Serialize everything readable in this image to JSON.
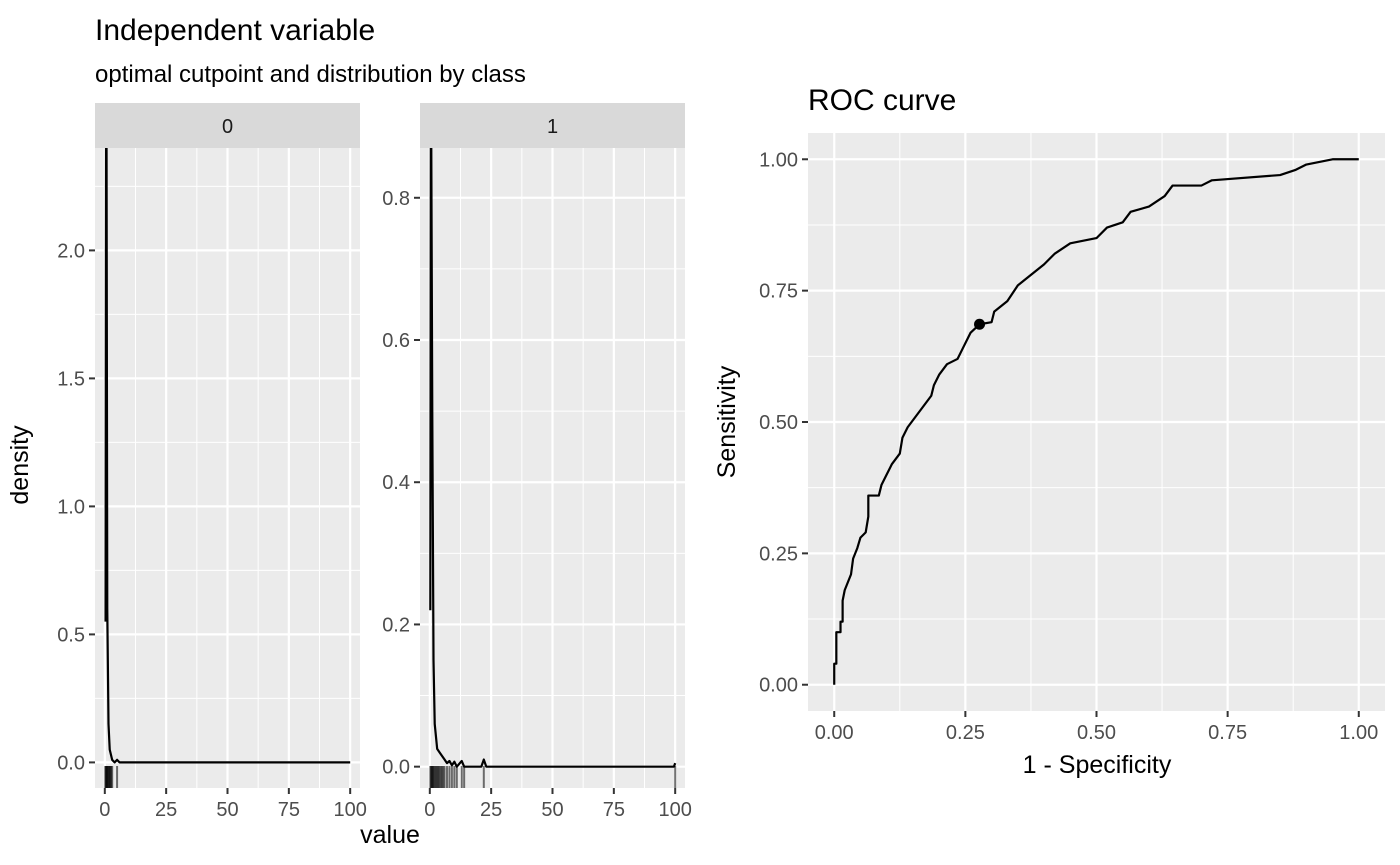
{
  "colors": {
    "panel_bg": "#EBEBEB",
    "grid_major": "#FFFFFF",
    "strip_bg": "#D9D9D9",
    "line": "#000000",
    "tick": "#333333"
  },
  "chart_data": [
    {
      "type": "density",
      "title": "Independent variable",
      "subtitle": "optimal cutpoint and distribution by class",
      "xlabel": "value",
      "ylabel": "density",
      "facets": [
        {
          "label": "0",
          "xlim": [
            -4,
            104
          ],
          "ylim": [
            -0.1,
            2.4
          ],
          "xticks": [
            0,
            25,
            50,
            75,
            100
          ],
          "yticks": [
            0.0,
            0.5,
            1.0,
            1.5,
            2.0
          ],
          "yticklabels": [
            "0.0",
            "0.5",
            "1.0",
            "1.5",
            "2.0"
          ],
          "curve": [
            [
              0.3,
              0.55
            ],
            [
              0.5,
              2.45
            ],
            [
              0.7,
              2.45
            ],
            [
              1.0,
              0.6
            ],
            [
              1.5,
              0.15
            ],
            [
              2.0,
              0.05
            ],
            [
              3.0,
              0.01
            ],
            [
              4.0,
              0.0
            ],
            [
              5.0,
              0.01
            ],
            [
              6.0,
              0.0
            ],
            [
              100,
              0.0
            ]
          ],
          "rug": [
            0.2,
            0.4,
            0.6,
            0.8,
            1.0,
            1.2,
            1.5,
            1.8,
            2.0,
            2.3,
            2.6,
            3.0,
            5.0
          ]
        },
        {
          "label": "1",
          "xlim": [
            -4,
            104
          ],
          "ylim": [
            -0.03,
            0.87
          ],
          "xticks": [
            0,
            25,
            50,
            75,
            100
          ],
          "yticks": [
            0.0,
            0.2,
            0.4,
            0.6,
            0.8
          ],
          "yticklabels": [
            "0.0",
            "0.2",
            "0.4",
            "0.6",
            "0.8"
          ],
          "curve": [
            [
              0.2,
              0.22
            ],
            [
              0.4,
              0.87
            ],
            [
              0.6,
              0.87
            ],
            [
              1.0,
              0.5
            ],
            [
              1.5,
              0.15
            ],
            [
              2.0,
              0.06
            ],
            [
              3.0,
              0.025
            ],
            [
              4.0,
              0.02
            ],
            [
              5.0,
              0.015
            ],
            [
              6.0,
              0.01
            ],
            [
              7.0,
              0.005
            ],
            [
              8.0,
              0.008
            ],
            [
              9.0,
              0.002
            ],
            [
              10.0,
              0.007
            ],
            [
              11.0,
              0.0
            ],
            [
              13.0,
              0.008
            ],
            [
              14.0,
              0.0
            ],
            [
              21.0,
              0.0
            ],
            [
              22.0,
              0.01
            ],
            [
              23.0,
              0.0
            ],
            [
              99.5,
              0.0
            ],
            [
              100,
              0.005
            ]
          ],
          "rug": [
            0.2,
            0.5,
            0.8,
            1.0,
            1.3,
            1.6,
            2.0,
            2.4,
            2.8,
            3.2,
            3.6,
            4.0,
            4.5,
            5.0,
            5.5,
            6.0,
            7.0,
            8.0,
            9.0,
            10.0,
            11.0,
            13.0,
            14.0,
            22.0,
            100.0
          ]
        }
      ]
    },
    {
      "type": "line",
      "title": "ROC curve",
      "xlabel": "1 - Specificity",
      "ylabel": "Sensitivity",
      "xlim": [
        -0.05,
        1.05
      ],
      "ylim": [
        -0.05,
        1.05
      ],
      "xticks": [
        0.0,
        0.25,
        0.5,
        0.75,
        1.0
      ],
      "xticklabels": [
        "0.00",
        "0.25",
        "0.50",
        "0.75",
        "1.00"
      ],
      "yticks": [
        0.0,
        0.25,
        0.5,
        0.75,
        1.0
      ],
      "yticklabels": [
        "0.00",
        "0.25",
        "0.50",
        "0.75",
        "1.00"
      ],
      "optimal_cutpoint": {
        "x": 0.277,
        "y": 0.686
      },
      "curve": [
        [
          0.0,
          0.0
        ],
        [
          0.0,
          0.04
        ],
        [
          0.004,
          0.04
        ],
        [
          0.004,
          0.1
        ],
        [
          0.012,
          0.1
        ],
        [
          0.012,
          0.12
        ],
        [
          0.016,
          0.12
        ],
        [
          0.016,
          0.16
        ],
        [
          0.02,
          0.18
        ],
        [
          0.024,
          0.19
        ],
        [
          0.032,
          0.21
        ],
        [
          0.036,
          0.24
        ],
        [
          0.044,
          0.26
        ],
        [
          0.05,
          0.28
        ],
        [
          0.06,
          0.29
        ],
        [
          0.065,
          0.32
        ],
        [
          0.065,
          0.36
        ],
        [
          0.085,
          0.36
        ],
        [
          0.09,
          0.38
        ],
        [
          0.1,
          0.4
        ],
        [
          0.11,
          0.42
        ],
        [
          0.125,
          0.44
        ],
        [
          0.13,
          0.47
        ],
        [
          0.14,
          0.49
        ],
        [
          0.155,
          0.51
        ],
        [
          0.17,
          0.53
        ],
        [
          0.185,
          0.55
        ],
        [
          0.19,
          0.57
        ],
        [
          0.2,
          0.59
        ],
        [
          0.215,
          0.61
        ],
        [
          0.235,
          0.62
        ],
        [
          0.245,
          0.64
        ],
        [
          0.26,
          0.67
        ],
        [
          0.277,
          0.686
        ],
        [
          0.3,
          0.69
        ],
        [
          0.305,
          0.71
        ],
        [
          0.33,
          0.73
        ],
        [
          0.35,
          0.76
        ],
        [
          0.375,
          0.78
        ],
        [
          0.4,
          0.8
        ],
        [
          0.42,
          0.82
        ],
        [
          0.45,
          0.84
        ],
        [
          0.5,
          0.85
        ],
        [
          0.52,
          0.87
        ],
        [
          0.55,
          0.88
        ],
        [
          0.565,
          0.9
        ],
        [
          0.6,
          0.91
        ],
        [
          0.63,
          0.93
        ],
        [
          0.645,
          0.95
        ],
        [
          0.7,
          0.95
        ],
        [
          0.72,
          0.96
        ],
        [
          0.85,
          0.97
        ],
        [
          0.88,
          0.98
        ],
        [
          0.9,
          0.99
        ],
        [
          0.95,
          1.0
        ],
        [
          1.0,
          1.0
        ]
      ]
    }
  ]
}
